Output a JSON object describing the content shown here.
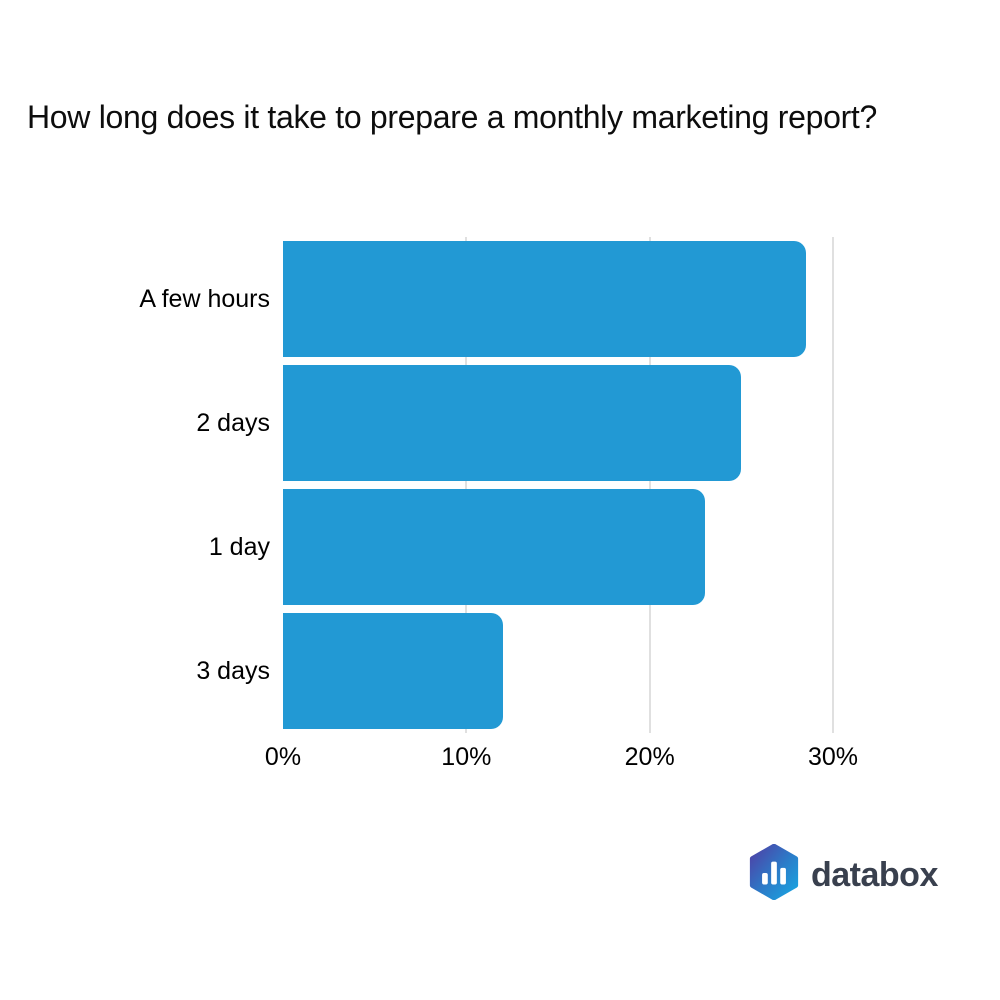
{
  "page": {
    "background": "#ffffff"
  },
  "title": "How long does it take to prepare a monthly marketing report?",
  "chart_data": {
    "type": "bar",
    "orientation": "horizontal",
    "title": "How long does it take to prepare a monthly marketing report?",
    "categories": [
      "A few hours",
      "2 days",
      "1 day",
      "3 days"
    ],
    "values": [
      28.5,
      25,
      23,
      12
    ],
    "value_unit": "%",
    "x_tick_values": [
      0,
      10,
      20,
      30
    ],
    "x_tick_labels": [
      "0%",
      "10%",
      "20%",
      "30%"
    ],
    "xlim": [
      0,
      33
    ],
    "grid": "vertical gridlines at ticks, behind bars, none at 0%",
    "legend": "none",
    "bar_color": "#2299d4",
    "gridline_color": "#e0e0e0",
    "text_color": "#000000"
  },
  "branding": {
    "wordmark": "databox",
    "wordmark_color": "#39404e",
    "icon": "hexagon-bar-chart",
    "icon_gradient_start": "#4f3fa5",
    "icon_gradient_end": "#18a6e2",
    "icon_bar_color": "#ffffff"
  }
}
